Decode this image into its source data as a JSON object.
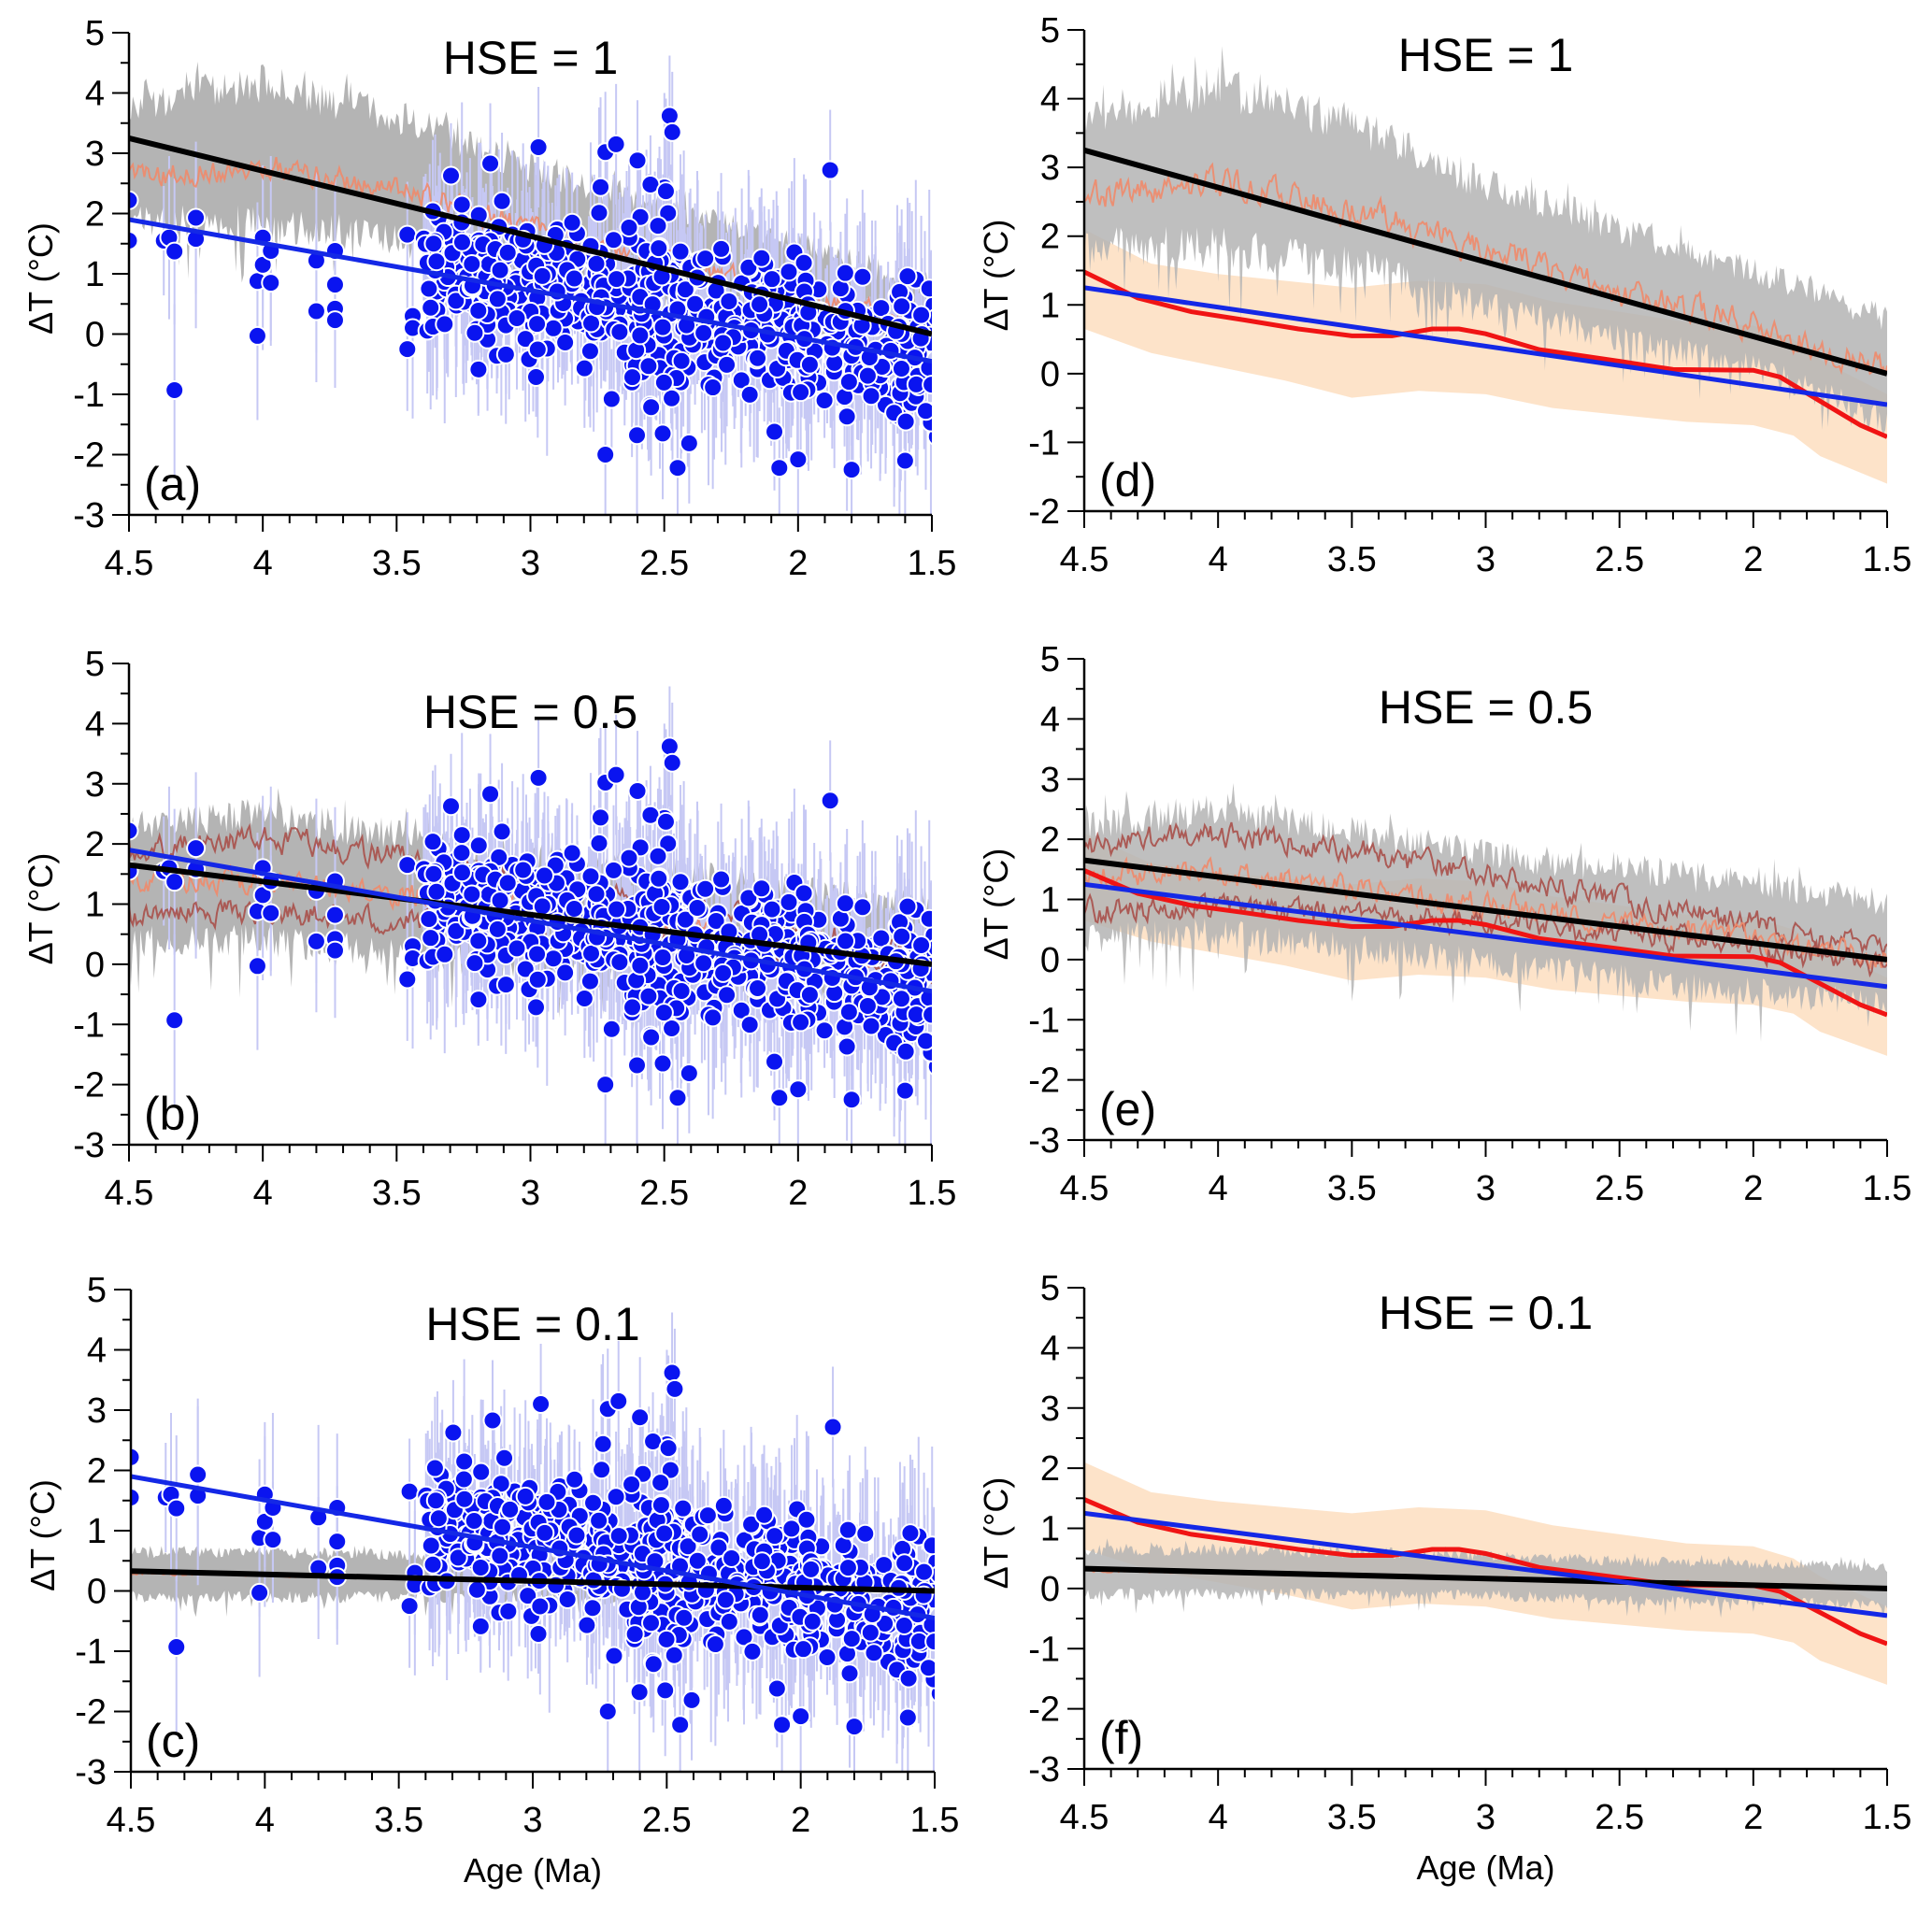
{
  "figure": {
    "colors": {
      "proxy_points": "#0a14f0",
      "proxy_point_edge": "#ffffff",
      "proxy_errorbar": "#c6c8f4",
      "proxy_fit": "#1428e6",
      "model_envelope": "#b4b4b4",
      "model_mean": "#f08a6a",
      "model_mean_upper": "#a8504a",
      "model_fit": "#000000",
      "smoothed_proxy": "#f01414",
      "smoothed_proxy_band": "#fcdcbc"
    }
  },
  "chart_data": [
    {
      "id": "a",
      "type": "scatter",
      "title": "HSE = 1",
      "panel_label": "(a)",
      "xlabel": "",
      "ylabel": "ΔT (°C)",
      "xlim": [
        4.5,
        1.5
      ],
      "ylim": [
        -3,
        5
      ],
      "x_ticks": [
        "4.5",
        "4",
        "3.5",
        "3",
        "2.5",
        "2",
        "1.5"
      ],
      "y_ticks": [
        "-3",
        "-2",
        "-1",
        "0",
        "1",
        "2",
        "3",
        "4",
        "5"
      ],
      "series": [
        {
          "name": "Proxy ΔT data points with error bars",
          "kind": "scatter",
          "description": "~700 points, dense between 3.4 and 1.5 Ma, range about -2.2 to 3.6 °C"
        },
        {
          "name": "Model ensemble envelope",
          "kind": "band",
          "x": [
            4.5,
            4.0,
            3.5,
            3.0,
            2.5,
            2.0,
            1.5
          ],
          "lower": [
            1.6,
            1.5,
            1.3,
            0.7,
            0.3,
            -0.1,
            -0.9
          ],
          "upper": [
            4.0,
            4.5,
            3.9,
            3.0,
            2.3,
            1.7,
            1.0
          ]
        },
        {
          "name": "Model ensemble mean",
          "kind": "line",
          "x": [
            4.5,
            4.0,
            3.5,
            3.0,
            2.5,
            2.0,
            1.5
          ],
          "y": [
            2.6,
            2.8,
            2.4,
            1.8,
            1.2,
            0.7,
            0.1
          ]
        },
        {
          "name": "Model linear fit",
          "kind": "line",
          "x": [
            4.5,
            1.5
          ],
          "y": [
            3.25,
            0.0
          ]
        },
        {
          "name": "Proxy linear fit",
          "kind": "line",
          "x": [
            4.5,
            1.5
          ],
          "y": [
            1.9,
            -0.45
          ]
        }
      ]
    },
    {
      "id": "b",
      "type": "scatter",
      "title": "HSE = 0.5",
      "panel_label": "(b)",
      "xlabel": "",
      "ylabel": "ΔT (°C)",
      "xlim": [
        4.5,
        1.5
      ],
      "ylim": [
        -3,
        5
      ],
      "x_ticks": [
        "4.5",
        "4",
        "3.5",
        "3",
        "2.5",
        "2",
        "1.5"
      ],
      "y_ticks": [
        "-3",
        "-2",
        "-1",
        "0",
        "1",
        "2",
        "3",
        "4",
        "5"
      ],
      "series": [
        {
          "name": "Proxy ΔT data points with error bars",
          "kind": "scatter",
          "description": "same proxy data as (a)"
        },
        {
          "name": "Model ensemble envelope",
          "kind": "band",
          "x": [
            4.5,
            4.0,
            3.5,
            3.0,
            2.5,
            2.0,
            1.5
          ],
          "lower": [
            0.1,
            0.1,
            -0.1,
            -0.3,
            -0.6,
            -0.8,
            -1.0
          ],
          "upper": [
            2.5,
            2.8,
            2.4,
            2.0,
            1.8,
            1.5,
            1.2
          ]
        },
        {
          "name": "Model upper member",
          "kind": "line",
          "x": [
            4.5,
            4.0,
            3.5,
            3.0,
            2.5,
            2.0,
            1.5
          ],
          "y": [
            1.9,
            2.1,
            1.8,
            1.4,
            1.0,
            0.6,
            0.1
          ]
        },
        {
          "name": "Model ensemble mean",
          "kind": "line",
          "x": [
            4.5,
            4.0,
            3.5,
            3.0,
            2.5,
            2.0,
            1.5
          ],
          "y": [
            1.4,
            1.4,
            1.2,
            0.9,
            0.6,
            0.3,
            0.0
          ]
        },
        {
          "name": "Model lower member",
          "kind": "line",
          "x": [
            4.5,
            4.0,
            3.5,
            3.0,
            2.5,
            2.0,
            1.5
          ],
          "y": [
            0.8,
            0.9,
            0.7,
            0.6,
            0.4,
            0.2,
            -0.1
          ]
        },
        {
          "name": "Model linear fit",
          "kind": "line",
          "x": [
            4.5,
            1.5
          ],
          "y": [
            1.65,
            0.0
          ]
        },
        {
          "name": "Proxy linear fit",
          "kind": "line",
          "x": [
            4.5,
            1.5
          ],
          "y": [
            1.9,
            -0.45
          ]
        }
      ]
    },
    {
      "id": "c",
      "type": "scatter",
      "title": "HSE = 0.1",
      "panel_label": "(c)",
      "xlabel": "Age (Ma)",
      "ylabel": "ΔT (°C)",
      "xlim": [
        4.5,
        1.5
      ],
      "ylim": [
        -3,
        5
      ],
      "x_ticks": [
        "4.5",
        "4",
        "3.5",
        "3",
        "2.5",
        "2",
        "1.5"
      ],
      "y_ticks": [
        "-3",
        "-2",
        "-1",
        "0",
        "1",
        "2",
        "3",
        "4",
        "5"
      ],
      "series": [
        {
          "name": "Proxy ΔT data points with error bars",
          "kind": "scatter",
          "description": "same proxy data as (a)"
        },
        {
          "name": "Model ensemble envelope",
          "kind": "band",
          "x": [
            4.5,
            4.0,
            3.5,
            3.0,
            2.5,
            2.0,
            1.5
          ],
          "lower": [
            -0.2,
            -0.2,
            -0.2,
            -0.2,
            -0.3,
            -0.3,
            -0.35
          ],
          "upper": [
            0.75,
            0.75,
            0.7,
            0.65,
            0.55,
            0.5,
            0.45
          ]
        },
        {
          "name": "Model ensemble mean",
          "kind": "line",
          "x": [
            4.5,
            4.0,
            3.5,
            3.0,
            2.5,
            2.0,
            1.5
          ],
          "y": [
            0.3,
            0.27,
            0.22,
            0.17,
            0.12,
            0.06,
            0.0
          ]
        },
        {
          "name": "Model linear fit",
          "kind": "line",
          "x": [
            4.5,
            1.5
          ],
          "y": [
            0.33,
            0.0
          ]
        },
        {
          "name": "Proxy linear fit",
          "kind": "line",
          "x": [
            4.5,
            1.5
          ],
          "y": [
            1.9,
            -0.45
          ]
        }
      ]
    },
    {
      "id": "d",
      "type": "line",
      "title": "HSE = 1",
      "panel_label": "(d)",
      "xlabel": "",
      "ylabel": "ΔT (°C)",
      "xlim": [
        4.5,
        1.5
      ],
      "ylim": [
        -2,
        5
      ],
      "x_ticks": [
        "4.5",
        "4",
        "3.5",
        "3",
        "2.5",
        "2",
        "1.5"
      ],
      "y_ticks": [
        "-2",
        "-1",
        "0",
        "1",
        "2",
        "3",
        "4",
        "5"
      ],
      "series": [
        {
          "name": "Smoothed proxy uncertainty band",
          "kind": "band",
          "x": [
            4.5,
            4.25,
            4.0,
            3.75,
            3.5,
            3.25,
            3.0,
            2.75,
            2.5,
            2.25,
            2.0,
            1.85,
            1.75,
            1.5
          ],
          "lower": [
            0.65,
            0.3,
            0.1,
            -0.1,
            -0.35,
            -0.25,
            -0.3,
            -0.5,
            -0.6,
            -0.7,
            -0.75,
            -0.9,
            -1.2,
            -1.6
          ],
          "upper": [
            2.1,
            1.6,
            1.45,
            1.35,
            1.25,
            1.35,
            1.3,
            1.05,
            0.9,
            0.75,
            0.7,
            0.5,
            0.2,
            -0.3
          ]
        },
        {
          "name": "Model ensemble envelope",
          "kind": "band",
          "x": [
            4.5,
            4.0,
            3.5,
            3.0,
            2.5,
            2.0,
            1.5
          ],
          "lower": [
            1.6,
            1.5,
            1.3,
            0.7,
            0.3,
            -0.1,
            -0.9
          ],
          "upper": [
            4.0,
            4.5,
            3.9,
            3.0,
            2.3,
            1.7,
            1.0
          ]
        },
        {
          "name": "Model ensemble mean",
          "kind": "line",
          "x": [
            4.5,
            4.0,
            3.5,
            3.0,
            2.5,
            2.0,
            1.5
          ],
          "y": [
            2.6,
            2.8,
            2.4,
            1.8,
            1.2,
            0.7,
            0.1
          ]
        },
        {
          "name": "Model linear fit",
          "kind": "line",
          "x": [
            4.5,
            1.5
          ],
          "y": [
            3.25,
            0.0
          ]
        },
        {
          "name": "Smoothed proxy",
          "kind": "line",
          "x": [
            4.5,
            4.3,
            4.1,
            3.9,
            3.7,
            3.5,
            3.35,
            3.2,
            3.1,
            3.0,
            2.8,
            2.5,
            2.3,
            2.0,
            1.9,
            1.75,
            1.6,
            1.5
          ],
          "y": [
            1.48,
            1.1,
            0.9,
            0.78,
            0.65,
            0.55,
            0.55,
            0.65,
            0.65,
            0.58,
            0.35,
            0.18,
            0.06,
            0.05,
            -0.05,
            -0.4,
            -0.75,
            -0.92
          ]
        },
        {
          "name": "Proxy linear fit",
          "kind": "line",
          "x": [
            4.5,
            1.5
          ],
          "y": [
            1.25,
            -0.45
          ]
        }
      ]
    },
    {
      "id": "e",
      "type": "line",
      "title": "HSE = 0.5",
      "panel_label": "(e)",
      "xlabel": "",
      "ylabel": "ΔT (°C)",
      "xlim": [
        4.5,
        1.5
      ],
      "ylim": [
        -3,
        5
      ],
      "x_ticks": [
        "4.5",
        "4",
        "3.5",
        "3",
        "2.5",
        "2",
        "1.5"
      ],
      "y_ticks": [
        "-3",
        "-2",
        "-1",
        "0",
        "1",
        "2",
        "3",
        "4",
        "5"
      ],
      "series": [
        {
          "name": "Smoothed proxy uncertainty band",
          "kind": "band",
          "x": [
            4.5,
            4.25,
            4.0,
            3.75,
            3.5,
            3.25,
            3.0,
            2.75,
            2.5,
            2.25,
            2.0,
            1.85,
            1.75,
            1.5
          ],
          "lower": [
            0.65,
            0.3,
            0.1,
            -0.1,
            -0.35,
            -0.25,
            -0.3,
            -0.5,
            -0.6,
            -0.7,
            -0.75,
            -0.9,
            -1.2,
            -1.6
          ],
          "upper": [
            2.1,
            1.6,
            1.45,
            1.35,
            1.25,
            1.35,
            1.3,
            1.05,
            0.9,
            0.75,
            0.7,
            0.5,
            0.2,
            -0.3
          ]
        },
        {
          "name": "Model ensemble envelope",
          "kind": "band",
          "x": [
            4.5,
            4.0,
            3.5,
            3.0,
            2.5,
            2.0,
            1.5
          ],
          "lower": [
            0.1,
            0.1,
            -0.1,
            -0.3,
            -0.6,
            -0.8,
            -1.0
          ],
          "upper": [
            2.5,
            2.8,
            2.4,
            2.0,
            1.8,
            1.5,
            1.2
          ]
        },
        {
          "name": "Model upper member",
          "kind": "line",
          "x": [
            4.5,
            4.0,
            3.5,
            3.0,
            2.5,
            2.0,
            1.5
          ],
          "y": [
            1.9,
            2.1,
            1.8,
            1.4,
            1.0,
            0.6,
            0.1
          ]
        },
        {
          "name": "Model ensemble mean",
          "kind": "line",
          "x": [
            4.5,
            4.0,
            3.5,
            3.0,
            2.5,
            2.0,
            1.5
          ],
          "y": [
            1.4,
            1.4,
            1.2,
            0.9,
            0.6,
            0.3,
            0.0
          ]
        },
        {
          "name": "Model lower member",
          "kind": "line",
          "x": [
            4.5,
            4.0,
            3.5,
            3.0,
            2.5,
            2.0,
            1.5
          ],
          "y": [
            0.8,
            0.9,
            0.7,
            0.6,
            0.4,
            0.2,
            -0.1
          ]
        },
        {
          "name": "Model linear fit",
          "kind": "line",
          "x": [
            4.5,
            1.5
          ],
          "y": [
            1.65,
            0.0
          ]
        },
        {
          "name": "Smoothed proxy",
          "kind": "line",
          "x": [
            4.5,
            4.3,
            4.1,
            3.9,
            3.7,
            3.5,
            3.35,
            3.2,
            3.1,
            3.0,
            2.8,
            2.5,
            2.3,
            2.0,
            1.9,
            1.75,
            1.6,
            1.5
          ],
          "y": [
            1.48,
            1.1,
            0.9,
            0.78,
            0.65,
            0.55,
            0.55,
            0.65,
            0.65,
            0.58,
            0.35,
            0.18,
            0.06,
            0.05,
            -0.05,
            -0.4,
            -0.75,
            -0.92
          ]
        },
        {
          "name": "Proxy linear fit",
          "kind": "line",
          "x": [
            4.5,
            1.5
          ],
          "y": [
            1.25,
            -0.45
          ]
        }
      ]
    },
    {
      "id": "f",
      "type": "line",
      "title": "HSE = 0.1",
      "panel_label": "(f)",
      "xlabel": "Age (Ma)",
      "ylabel": "ΔT (°C)",
      "xlim": [
        4.5,
        1.5
      ],
      "ylim": [
        -3,
        5
      ],
      "x_ticks": [
        "4.5",
        "4",
        "3.5",
        "3",
        "2.5",
        "2",
        "1.5"
      ],
      "y_ticks": [
        "-3",
        "-2",
        "-1",
        "0",
        "1",
        "2",
        "3",
        "4",
        "5"
      ],
      "series": [
        {
          "name": "Smoothed proxy uncertainty band",
          "kind": "band",
          "x": [
            4.5,
            4.25,
            4.0,
            3.75,
            3.5,
            3.25,
            3.0,
            2.75,
            2.5,
            2.25,
            2.0,
            1.85,
            1.75,
            1.5
          ],
          "lower": [
            0.65,
            0.3,
            0.1,
            -0.1,
            -0.35,
            -0.25,
            -0.3,
            -0.5,
            -0.6,
            -0.7,
            -0.75,
            -0.9,
            -1.2,
            -1.6
          ],
          "upper": [
            2.1,
            1.6,
            1.45,
            1.35,
            1.25,
            1.35,
            1.3,
            1.05,
            0.9,
            0.75,
            0.7,
            0.5,
            0.2,
            -0.3
          ]
        },
        {
          "name": "Model ensemble envelope",
          "kind": "band",
          "x": [
            4.5,
            4.0,
            3.5,
            3.0,
            2.5,
            2.0,
            1.5
          ],
          "lower": [
            -0.2,
            -0.2,
            -0.2,
            -0.2,
            -0.3,
            -0.3,
            -0.35
          ],
          "upper": [
            0.75,
            0.75,
            0.7,
            0.65,
            0.55,
            0.5,
            0.45
          ]
        },
        {
          "name": "Model ensemble mean",
          "kind": "line",
          "x": [
            4.5,
            4.0,
            3.5,
            3.0,
            2.5,
            2.0,
            1.5
          ],
          "y": [
            0.3,
            0.27,
            0.22,
            0.17,
            0.12,
            0.06,
            0.0
          ]
        },
        {
          "name": "Model linear fit",
          "kind": "line",
          "x": [
            4.5,
            1.5
          ],
          "y": [
            0.33,
            0.0
          ]
        },
        {
          "name": "Smoothed proxy",
          "kind": "line",
          "x": [
            4.5,
            4.3,
            4.1,
            3.9,
            3.7,
            3.5,
            3.35,
            3.2,
            3.1,
            3.0,
            2.8,
            2.5,
            2.3,
            2.0,
            1.9,
            1.75,
            1.6,
            1.5
          ],
          "y": [
            1.48,
            1.1,
            0.9,
            0.78,
            0.65,
            0.55,
            0.55,
            0.65,
            0.65,
            0.58,
            0.35,
            0.18,
            0.06,
            0.05,
            -0.05,
            -0.4,
            -0.75,
            -0.92
          ]
        },
        {
          "name": "Proxy linear fit",
          "kind": "line",
          "x": [
            4.5,
            1.5
          ],
          "y": [
            1.25,
            -0.45
          ]
        }
      ]
    }
  ]
}
